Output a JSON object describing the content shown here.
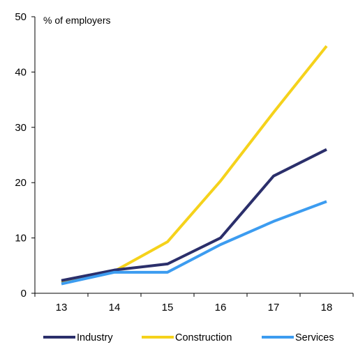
{
  "chart_data": {
    "type": "line",
    "title": "",
    "xlabel": "",
    "ylabel": "% of employers",
    "x": [
      "13",
      "14",
      "15",
      "16",
      "17",
      "18"
    ],
    "ylim": [
      0,
      50
    ],
    "yticks": [
      "0",
      "10",
      "20",
      "30",
      "40",
      "50"
    ],
    "grid": false,
    "legend_position": "bottom",
    "series": [
      {
        "name": "Industry",
        "color": "#2b2f6b",
        "values": [
          2.3,
          4.2,
          5.3,
          10.0,
          21.2,
          26.0
        ]
      },
      {
        "name": "Construction",
        "color": "#f5d21b",
        "values": [
          2.0,
          4.0,
          9.3,
          20.3,
          32.7,
          44.7
        ]
      },
      {
        "name": "Services",
        "color": "#3c9cf0",
        "values": [
          1.7,
          3.8,
          3.8,
          8.8,
          13.0,
          16.6
        ]
      }
    ]
  }
}
